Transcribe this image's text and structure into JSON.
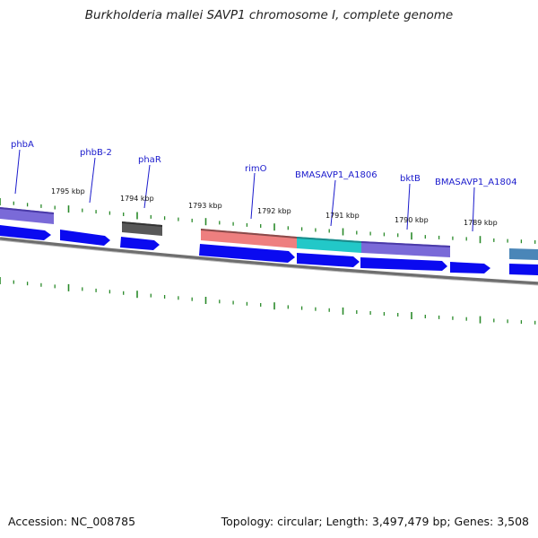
{
  "title": "Burkholderia mallei SAVP1 chromosome I, complete genome",
  "footer": {
    "accession": "Accession: NC_008785",
    "summary": "Topology: circular; Length: 3,497,479 bp; Genes: 3,508"
  },
  "colors": {
    "backbone": "#777777",
    "gene_blue": "#0a0af0",
    "tick_green": "#2a8a2a",
    "label_blue": "#1a1acc",
    "purple": "#7a6ad8",
    "dark_grey": "#555555",
    "salmon": "#ee7f7f",
    "cyan": "#22c8c8",
    "steel": "#4a86b8"
  },
  "gene_labels": [
    {
      "name": "phbA"
    },
    {
      "name": "phbB-2"
    },
    {
      "name": "phaR"
    },
    {
      "name": "rimO"
    },
    {
      "name": "BMASAVP1_A1806"
    },
    {
      "name": "bktB"
    },
    {
      "name": "BMASAVP1_A1804"
    }
  ],
  "ticks": [
    {
      "label": "1795 kbp"
    },
    {
      "label": "1794 kbp"
    },
    {
      "label": "1793 kbp"
    },
    {
      "label": "1792 kbp"
    },
    {
      "label": "1791 kbp"
    },
    {
      "label": "1790 kbp"
    },
    {
      "label": "1789 kbp"
    }
  ]
}
